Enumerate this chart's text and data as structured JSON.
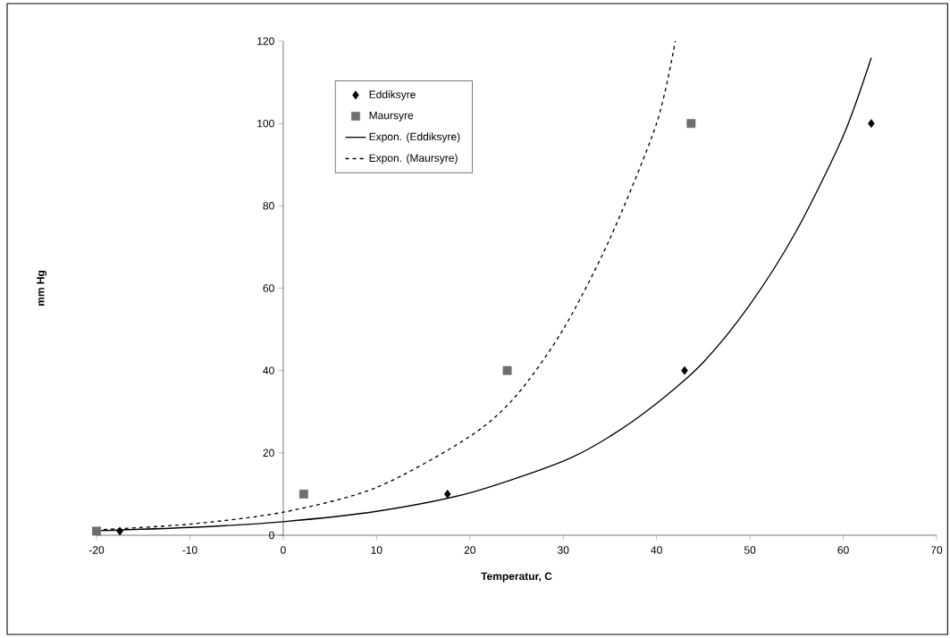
{
  "chart_data": {
    "type": "scatter",
    "xlabel": "Temperatur, C",
    "ylabel": "mm Hg",
    "xlim": [
      -20,
      70
    ],
    "ylim": [
      0,
      120
    ],
    "xticks": [
      -20,
      -10,
      0,
      10,
      20,
      30,
      40,
      50,
      60,
      70
    ],
    "yticks": [
      0,
      20,
      40,
      60,
      80,
      100,
      120
    ],
    "grid": false,
    "legend": "top left",
    "series": [
      {
        "name": "Eddiksyre",
        "marker": "diamond",
        "color": "#000000",
        "x": [
          -17.5,
          17.6,
          43,
          63
        ],
        "values": [
          1,
          10,
          40,
          100
        ]
      },
      {
        "name": "Maursyre",
        "marker": "square",
        "color": "#6e6e6e",
        "x": [
          -20,
          2.2,
          24,
          43.7
        ],
        "values": [
          1,
          10,
          40,
          100
        ]
      },
      {
        "name": "Expon. (Eddiksyre)",
        "type": "line",
        "marker": "none",
        "line_style": "solid",
        "color": "#000000",
        "x": [
          -20,
          -10,
          0,
          10,
          20,
          30,
          35,
          40,
          45,
          50,
          55,
          60,
          63
        ],
        "values": [
          1.1,
          1.9,
          3.3,
          5.8,
          10.3,
          18,
          24,
          32,
          42,
          56,
          74,
          97,
          116
        ]
      },
      {
        "name": "Expon. (Maursyre)",
        "type": "line",
        "marker": "none",
        "line_style": "dashed",
        "color": "#000000",
        "x": [
          -20,
          -10,
          0,
          10,
          20,
          25,
          30,
          35,
          40,
          42
        ],
        "values": [
          1.3,
          2.7,
          5.6,
          11.6,
          24,
          34,
          50,
          72,
          100,
          120
        ]
      }
    ]
  }
}
